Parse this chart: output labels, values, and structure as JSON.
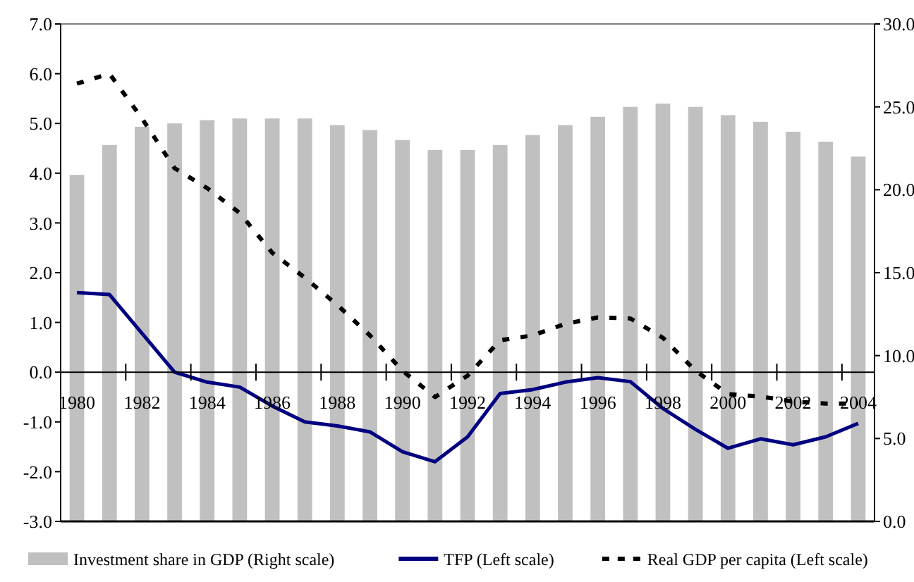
{
  "chart_data": {
    "type": "bar",
    "categories": [
      "1980",
      null,
      "1982",
      null,
      "1984",
      null,
      "1986",
      null,
      "1988",
      null,
      "1990",
      null,
      "1992",
      null,
      "1994",
      null,
      "1996",
      null,
      "1998",
      null,
      "2000",
      null,
      "2002",
      null,
      "2004"
    ],
    "series": [
      {
        "name": "Investment share in GDP (Right scale)",
        "axis": "y2",
        "color": "#c0c0c0",
        "values": [
          20.9,
          22.7,
          23.8,
          24.0,
          24.2,
          24.3,
          24.3,
          24.3,
          23.9,
          23.6,
          23.0,
          22.4,
          22.4,
          22.7,
          23.3,
          23.9,
          24.4,
          25.0,
          25.2,
          25.0,
          24.5,
          24.1,
          23.5,
          22.9,
          22.0
        ]
      },
      {
        "name": "TFP (Left scale)",
        "type": "line",
        "color": "#000080",
        "line_style": "solid",
        "values": [
          1.6,
          1.56,
          0.78,
          0.0,
          -0.2,
          -0.3,
          -0.68,
          -1.0,
          -1.08,
          -1.2,
          -1.6,
          -1.8,
          -1.3,
          -0.43,
          -0.35,
          -0.2,
          -0.11,
          -0.19,
          -0.73,
          -1.15,
          -1.53,
          -1.34,
          -1.46,
          -1.3,
          -1.03
        ]
      },
      {
        "name": "Real GDP per capita (Left scale)",
        "type": "line",
        "color": "#000000",
        "line_style": "dashed",
        "values": [
          5.8,
          6.0,
          5.1,
          4.1,
          3.7,
          3.2,
          2.4,
          1.9,
          1.35,
          0.74,
          0.03,
          -0.5,
          -0.07,
          0.64,
          0.74,
          0.97,
          1.1,
          1.08,
          0.69,
          0.03,
          -0.44,
          -0.49,
          -0.59,
          -0.63,
          -0.63
        ]
      }
    ],
    "ylim": [
      -3,
      7
    ],
    "yticks": [
      {
        "value": -3,
        "label": "-3.0"
      },
      {
        "value": -2,
        "label": "-2.0"
      },
      {
        "value": -1,
        "label": "-1.0"
      },
      {
        "value": 0,
        "label": "0.0"
      },
      {
        "value": 1,
        "label": "1.0"
      },
      {
        "value": 2,
        "label": "2.0"
      },
      {
        "value": 3,
        "label": "3.0"
      },
      {
        "value": 4,
        "label": "4.0"
      },
      {
        "value": 5,
        "label": "5.0"
      },
      {
        "value": 6,
        "label": "6.0"
      },
      {
        "value": 7,
        "label": "7.0"
      }
    ],
    "y2lim": [
      0,
      30
    ],
    "y2ticks": [
      {
        "value": 0,
        "label": "0.0"
      },
      {
        "value": 5,
        "label": "5.0"
      },
      {
        "value": 10,
        "label": "10.0"
      },
      {
        "value": 15,
        "label": "15.0"
      },
      {
        "value": 20,
        "label": "20.0"
      },
      {
        "value": 25,
        "label": "25.0"
      },
      {
        "value": 30,
        "label": "30.0"
      }
    ],
    "grid": false,
    "legend": "bottom"
  }
}
